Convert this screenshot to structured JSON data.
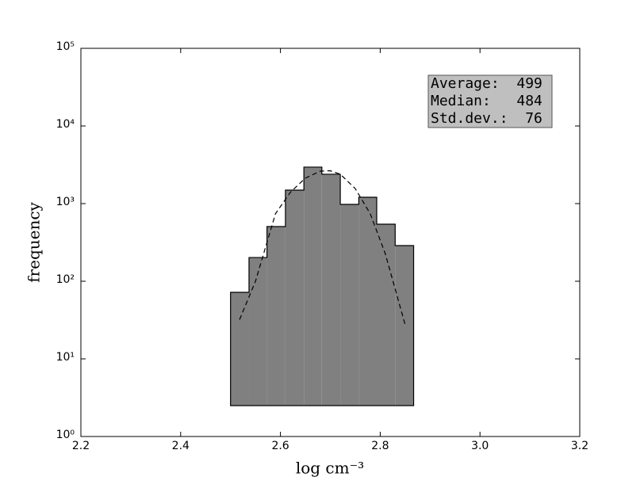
{
  "chart_data": {
    "type": "histogram",
    "xlabel": "log cm⁻³",
    "ylabel": "frequency",
    "bins": [
      2.5,
      2.537,
      2.573,
      2.61,
      2.647,
      2.683,
      2.72,
      2.757,
      2.793,
      2.83,
      2.867
    ],
    "values": [
      72,
      202,
      506,
      1490,
      2950,
      2390,
      977,
      1207,
      543,
      288
    ],
    "color": "#808080",
    "fit_line": {
      "x": [
        2.518,
        2.55,
        2.59,
        2.62,
        2.65,
        2.68,
        2.7,
        2.72,
        2.75,
        2.78,
        2.81,
        2.85
      ],
      "values": [
        32,
        100,
        740,
        1400,
        2130,
        2620,
        2650,
        2390,
        1560,
        740,
        228,
        27.5
      ]
    },
    "xlim": [
      2.2,
      3.2
    ],
    "xticks": [
      2.2,
      2.4,
      2.6,
      2.8,
      {
        "value": 3,
        "label": "3.0"
      },
      3.2
    ],
    "ylim": [
      1,
      100000
    ],
    "yticks": [
      {
        "value": 1,
        "label": "10⁰"
      },
      {
        "value": 10,
        "label": "10¹"
      },
      {
        "value": 100,
        "label": "10²"
      },
      {
        "value": 1000,
        "label": "10³"
      },
      {
        "value": 10000,
        "label": "10⁴"
      },
      {
        "value": 100000,
        "label": "10⁵"
      }
    ],
    "log_y": true,
    "stats": [
      "Average:  499",
      "Median:   484",
      "Std.dev.:  76"
    ]
  }
}
